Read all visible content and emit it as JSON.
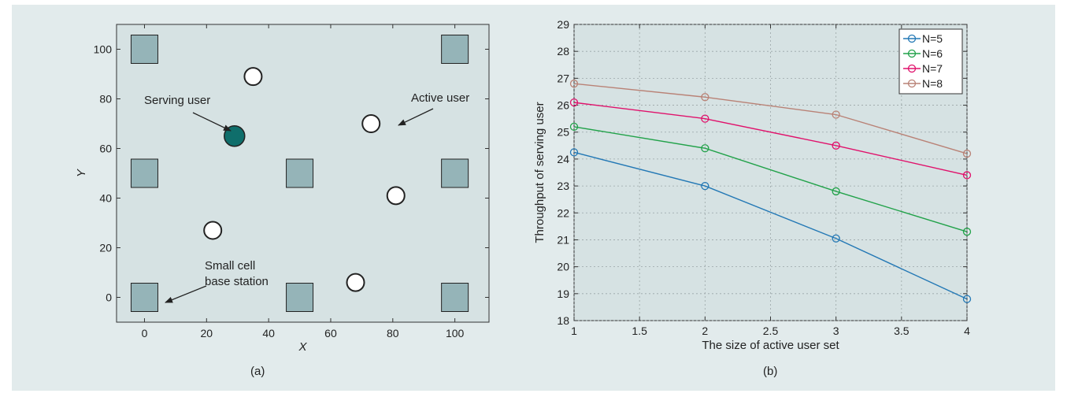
{
  "chart_data": [
    {
      "type": "scatter",
      "panel_label": "(a)",
      "xlabel": "X",
      "ylabel": "Y",
      "xlim": [
        -9,
        111
      ],
      "ylim": [
        -10,
        110
      ],
      "xticks": [
        0,
        20,
        40,
        60,
        80,
        100
      ],
      "yticks": [
        0,
        20,
        40,
        60,
        80,
        100
      ],
      "base_stations": [
        {
          "x": 0,
          "y": 0
        },
        {
          "x": 50,
          "y": 0
        },
        {
          "x": 100,
          "y": 0
        },
        {
          "x": 0,
          "y": 50
        },
        {
          "x": 50,
          "y": 50
        },
        {
          "x": 100,
          "y": 50
        },
        {
          "x": 0,
          "y": 100
        },
        {
          "x": 100,
          "y": 100
        }
      ],
      "active_users": [
        {
          "x": 35,
          "y": 89
        },
        {
          "x": 73,
          "y": 70
        },
        {
          "x": 81,
          "y": 41
        },
        {
          "x": 22,
          "y": 27
        },
        {
          "x": 68,
          "y": 6
        }
      ],
      "serving_user": {
        "x": 29,
        "y": 65
      },
      "annotations": {
        "serving_user": "Serving user",
        "active_user": "Active user",
        "base_station_line1": "Small cell",
        "base_station_line2": "base station"
      },
      "colors": {
        "base_station": "#95b4b8",
        "serving_user": "#0f6e6b",
        "active_user": "#ffffff",
        "plot_bg": "#d6e2e3"
      }
    },
    {
      "type": "line",
      "panel_label": "(b)",
      "xlabel": "The size of active user set",
      "ylabel": "Throughput of serving user",
      "xlim": [
        1,
        4
      ],
      "ylim": [
        18,
        29
      ],
      "xticks": [
        "1",
        "1.5",
        "2",
        "2.5",
        "3",
        "3.5",
        "4"
      ],
      "yticks": [
        "18",
        "19",
        "20",
        "21",
        "22",
        "23",
        "24",
        "25",
        "26",
        "27",
        "28",
        "29"
      ],
      "grid": true,
      "legend_position": "top-right",
      "x": [
        1,
        2,
        3,
        4
      ],
      "series": [
        {
          "name": "N=5",
          "color": "#2378b5",
          "values": [
            24.25,
            23.0,
            21.05,
            18.8
          ]
        },
        {
          "name": "N=6",
          "color": "#22a24a",
          "values": [
            25.2,
            24.4,
            22.8,
            21.3
          ]
        },
        {
          "name": "N=7",
          "color": "#e0116b",
          "values": [
            26.1,
            25.5,
            24.5,
            23.4
          ]
        },
        {
          "name": "N=8",
          "color": "#b98276",
          "values": [
            26.8,
            26.3,
            25.65,
            24.2
          ]
        }
      ]
    }
  ]
}
